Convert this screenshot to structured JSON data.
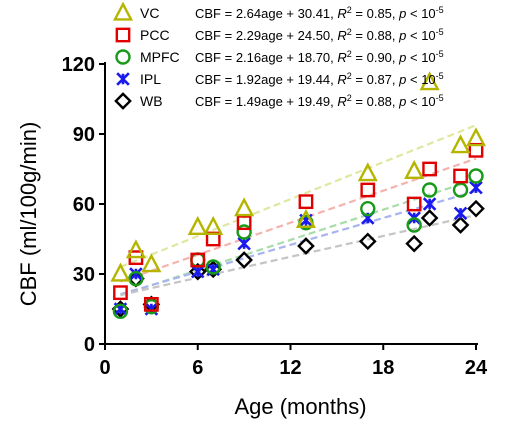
{
  "chart_data": {
    "type": "scatter",
    "xlabel": "Age (months)",
    "ylabel": "CBF (ml/100g/min)",
    "xlim": [
      0,
      24
    ],
    "ylim": [
      0,
      120
    ],
    "xticks": [
      0,
      6,
      12,
      18,
      24
    ],
    "yticks": [
      0,
      30,
      60,
      90,
      120
    ],
    "legend_position": "top",
    "series": [
      {
        "name": "VC",
        "marker": "triangle",
        "color": "#b5b500",
        "fit_color": "#dfe8a0",
        "eq_prefix": "CBF = 2.64age + 30.41, ",
        "r2_val": " = 0.85, ",
        "p_text": " < 10",
        "p_exp": "-5",
        "slope": 2.64,
        "intercept": 30.41,
        "x": [
          1,
          2,
          3,
          6,
          7,
          9,
          13,
          17,
          20,
          21,
          23,
          24
        ],
        "y": [
          30,
          40,
          34,
          50,
          50,
          58,
          53,
          73,
          74,
          112,
          85,
          88
        ]
      },
      {
        "name": "PCC",
        "marker": "square",
        "color": "#e00000",
        "fit_color": "#f3b3ae",
        "eq_prefix": "CBF = 2.29age + 24.50, ",
        "r2_val": " = 0.88, ",
        "p_text": " < 10",
        "p_exp": "-5",
        "slope": 2.29,
        "intercept": 24.5,
        "x": [
          1,
          2,
          3,
          6,
          7,
          9,
          13,
          17,
          20,
          21,
          23,
          24
        ],
        "y": [
          22,
          37,
          17,
          36,
          45,
          52,
          61,
          66,
          60,
          75,
          72,
          83
        ]
      },
      {
        "name": "MPFC",
        "marker": "circle",
        "color": "#1a9a1a",
        "fit_color": "#a8dca8",
        "eq_prefix": "CBF = 2.16age + 18.70, ",
        "r2_val": " = 0.90, ",
        "p_text": " < 10",
        "p_exp": "-5",
        "slope": 2.16,
        "intercept": 18.7,
        "x": [
          1,
          2,
          3,
          6,
          7,
          9,
          13,
          17,
          20,
          21,
          23,
          24
        ],
        "y": [
          14,
          28,
          16,
          36,
          33,
          48,
          52,
          58,
          51,
          66,
          66,
          72
        ]
      },
      {
        "name": "IPL",
        "marker": "x",
        "color": "#1a1aee",
        "fit_color": "#a8b4f0",
        "eq_prefix": "CBF = 1.92age + 19.44, ",
        "r2_val": " = 0.87, ",
        "p_text": " < 10",
        "p_exp": "-5",
        "slope": 1.92,
        "intercept": 19.44,
        "x": [
          1,
          2,
          3,
          6,
          7,
          9,
          13,
          17,
          20,
          21,
          23,
          24
        ],
        "y": [
          15,
          30,
          15,
          31,
          32,
          43,
          53,
          54,
          54,
          60,
          56,
          67
        ]
      },
      {
        "name": "WB",
        "marker": "diamond",
        "color": "#000000",
        "fit_color": "#c4c4c4",
        "eq_prefix": "CBF = 1.49age + 19.49, ",
        "r2_val": " = 0.88, ",
        "p_text": " < 10",
        "p_exp": "-5",
        "slope": 1.49,
        "intercept": 19.49,
        "x": [
          1,
          2,
          3,
          6,
          7,
          9,
          13,
          17,
          20,
          21,
          23,
          24
        ],
        "y": [
          15,
          28,
          17,
          31,
          32,
          36,
          42,
          44,
          43,
          54,
          51,
          58
        ]
      }
    ]
  }
}
